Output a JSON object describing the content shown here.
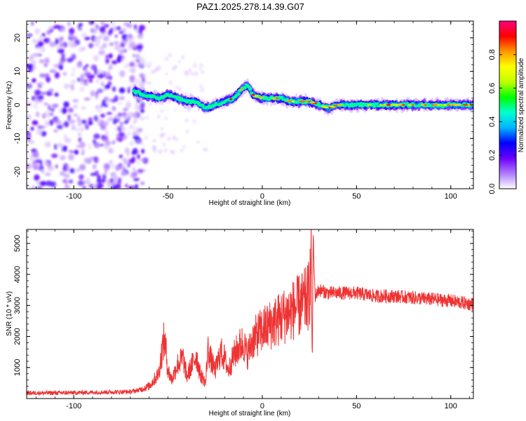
{
  "title": "PAZ1.2025.278.14.39.G07",
  "chart_data": [
    {
      "type": "heatmap",
      "xlabel": "Height of straight line (km)",
      "ylabel": "Frequency (Hz)",
      "xlim": [
        -125,
        112
      ],
      "ylim": [
        -25,
        25
      ],
      "x_ticks": [
        -100,
        -50,
        0,
        50,
        100
      ],
      "y_ticks": [
        -20,
        -10,
        0,
        10,
        20
      ],
      "colorbar": {
        "label": "Normalized spectral amplitude",
        "range": [
          0,
          1
        ],
        "ticks": [
          0.0,
          0.2,
          0.4,
          0.6,
          0.8
        ],
        "colors": [
          "#ffffff",
          "#b07bff",
          "#6a00ff",
          "#0000ff",
          "#00b4ff",
          "#00ffd0",
          "#00ff00",
          "#bfff00",
          "#ffff00",
          "#ff9900",
          "#ff0000",
          "#ff0080"
        ]
      },
      "centerline": {
        "x": [
          -68,
          -62,
          -55,
          -50,
          -45,
          -40,
          -35,
          -30,
          -25,
          -20,
          -15,
          -12,
          -8,
          -5,
          0,
          5,
          10,
          15,
          20,
          25,
          30,
          35,
          40,
          50,
          60,
          70,
          80,
          90,
          100,
          112
        ],
        "freq": [
          4,
          3,
          2,
          3,
          2,
          1,
          1,
          -1,
          0,
          1,
          2,
          4,
          6,
          3,
          2,
          2,
          2,
          1,
          1,
          1,
          0,
          -1,
          0,
          0,
          0,
          0,
          0,
          0,
          0,
          0
        ]
      }
    },
    {
      "type": "line",
      "xlabel": "Height of straight line (km)",
      "ylabel": "SNR (10 * v/v)",
      "xlim": [
        -125,
        112
      ],
      "ylim": [
        0,
        5450
      ],
      "x_ticks": [
        -100,
        0,
        50,
        100
      ],
      "y_ticks": [
        1000,
        2000,
        3000,
        4000,
        5000
      ],
      "series": [
        {
          "name": "SNR",
          "color": "#ee3333",
          "x": [
            -125,
            -120,
            -110,
            -100,
            -90,
            -80,
            -70,
            -65,
            -60,
            -55,
            -53,
            -52,
            -51,
            -50,
            -48,
            -45,
            -42,
            -40,
            -38,
            -35,
            -33,
            -30,
            -29,
            -27,
            -25,
            -22,
            -20,
            -18,
            -15,
            -12,
            -10,
            -8,
            -5,
            -2,
            0,
            5,
            10,
            15,
            20,
            24,
            25,
            26,
            26.5,
            27,
            28,
            30,
            35,
            40,
            50,
            60,
            70,
            80,
            90,
            100,
            105,
            110,
            112
          ],
          "y": [
            180,
            180,
            180,
            190,
            200,
            210,
            220,
            280,
            400,
            800,
            1600,
            1900,
            1500,
            900,
            600,
            1100,
            1300,
            700,
            1000,
            1400,
            800,
            500,
            1600,
            1200,
            900,
            1500,
            1300,
            900,
            1400,
            1700,
            1800,
            1400,
            1900,
            2100,
            2200,
            2400,
            2600,
            2800,
            3000,
            3200,
            3500,
            4400,
            1000,
            5200,
            3300,
            3500,
            3400,
            3400,
            3400,
            3300,
            3300,
            3250,
            3200,
            3150,
            3100,
            3050,
            3050
          ]
        }
      ]
    }
  ]
}
